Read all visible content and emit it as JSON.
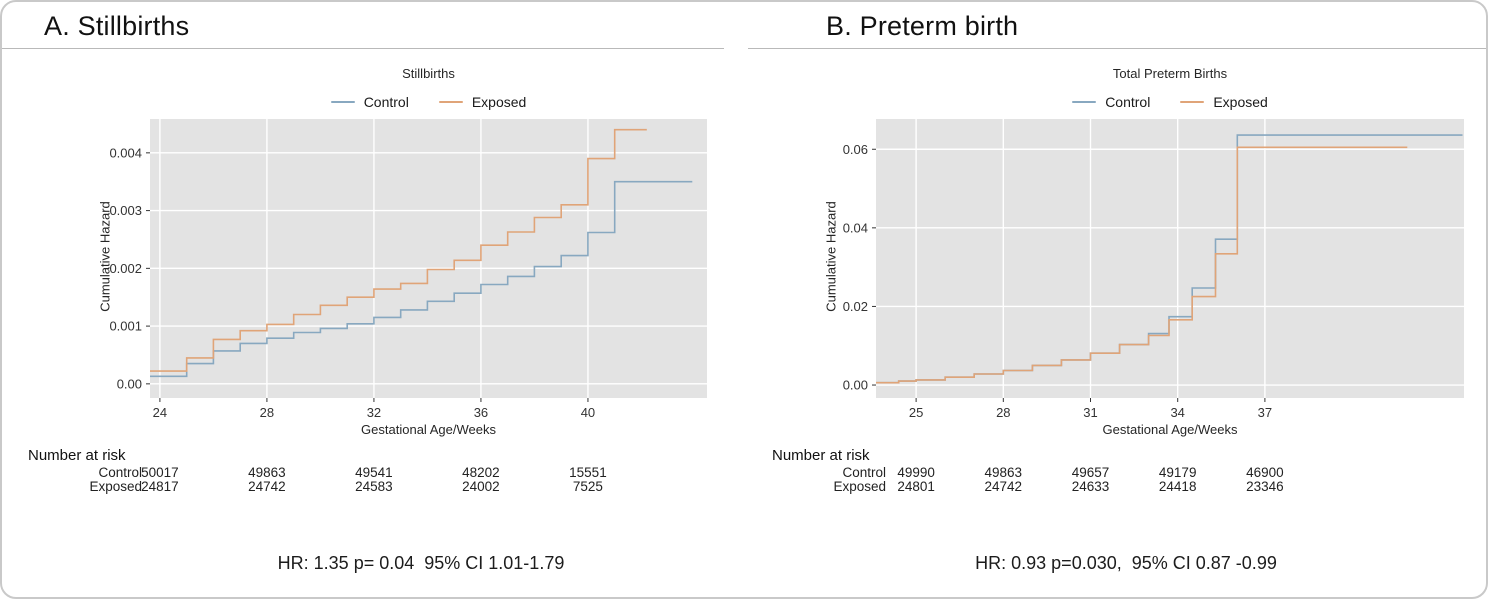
{
  "panels": [
    {
      "title": "A. Stillbirths",
      "risk": {
        "header": "Number at risk",
        "rows": [
          {
            "label": "Control",
            "values": [
              "50017",
              "49863",
              "49541",
              "48202",
              "15551"
            ]
          },
          {
            "label": "Exposed",
            "values": [
              "24817",
              "24742",
              "24583",
              "24002",
              "7525"
            ]
          }
        ]
      },
      "stats": "HR: 1.35 p= 0.04  95% CI 1.01-1.79"
    },
    {
      "title": "B. Preterm birth",
      "risk": {
        "header": "Number at risk",
        "rows": [
          {
            "label": "Control",
            "values": [
              "49990",
              "49863",
              "49657",
              "49179",
              "46900"
            ]
          },
          {
            "label": "Exposed",
            "values": [
              "24801",
              "24742",
              "24633",
              "24418",
              "23346"
            ]
          }
        ]
      },
      "stats": "HR: 0.93 p=0.030,  95% CI 0.87 -0.99"
    }
  ],
  "chart_data": [
    {
      "type": "line",
      "step": true,
      "title": "Stillbirths",
      "xlabel": "Gestational Age/Weeks",
      "ylabel": "Cumulative Hazard",
      "xlim": [
        23.63,
        44.45
      ],
      "ylim": [
        -0.000245,
        0.004586
      ],
      "x_ticks": [
        24,
        28,
        32,
        36,
        40
      ],
      "y_ticks": [
        {
          "v": 0,
          "label": "0.00"
        },
        {
          "v": 0.001,
          "label": "0.001"
        },
        {
          "v": 0.002,
          "label": "0.002"
        },
        {
          "v": 0.003,
          "label": "0.003"
        },
        {
          "v": 0.004,
          "label": "0.004"
        }
      ],
      "grid": true,
      "legend_position": "top",
      "panel_bg": "#e3e3e3",
      "series": [
        {
          "name": "Control",
          "color": "#88a8c0",
          "end_x": 43.9,
          "steps": [
            [
              23.63,
              0.00013
            ],
            [
              25,
              0.00035
            ],
            [
              26,
              0.00057
            ],
            [
              27,
              0.0007
            ],
            [
              28,
              0.00079
            ],
            [
              29,
              0.00089
            ],
            [
              30,
              0.00096
            ],
            [
              31,
              0.00104
            ],
            [
              32,
              0.00115
            ],
            [
              33,
              0.00128
            ],
            [
              34,
              0.00143
            ],
            [
              35,
              0.00157
            ],
            [
              36,
              0.00172
            ],
            [
              37,
              0.00186
            ],
            [
              38,
              0.00203
            ],
            [
              39,
              0.00222
            ],
            [
              40,
              0.00262
            ],
            [
              41,
              0.0035
            ]
          ]
        },
        {
          "name": "Exposed",
          "color": "#e0a478",
          "end_x": 42.2,
          "steps": [
            [
              23.63,
              0.00022
            ],
            [
              25,
              0.00045
            ],
            [
              26,
              0.00077
            ],
            [
              27,
              0.00092
            ],
            [
              28,
              0.00103
            ],
            [
              29,
              0.0012
            ],
            [
              30,
              0.00136
            ],
            [
              31,
              0.0015
            ],
            [
              32,
              0.00164
            ],
            [
              33,
              0.00174
            ],
            [
              34,
              0.00198
            ],
            [
              35,
              0.00214
            ],
            [
              36,
              0.0024
            ],
            [
              37,
              0.00263
            ],
            [
              38,
              0.00288
            ],
            [
              39,
              0.0031
            ],
            [
              40,
              0.0039
            ],
            [
              41,
              0.0044
            ]
          ]
        }
      ]
    },
    {
      "type": "line",
      "step": true,
      "title": "Total Preterm Births",
      "xlabel": "Gestational Age/Weeks",
      "ylabel": "Cumulative Hazard",
      "xlim": [
        23.62,
        43.85
      ],
      "ylim": [
        -0.0033,
        0.0677
      ],
      "x_ticks": [
        25,
        28,
        31,
        34,
        37
      ],
      "y_ticks": [
        {
          "v": 0,
          "label": "0.00"
        },
        {
          "v": 0.02,
          "label": "0.02"
        },
        {
          "v": 0.04,
          "label": "0.04"
        },
        {
          "v": 0.06,
          "label": "0.06"
        }
      ],
      "grid": true,
      "legend_position": "top",
      "panel_bg": "#e3e3e3",
      "series": [
        {
          "name": "Control",
          "color": "#88a8c0",
          "end_x": 43.8,
          "steps": [
            [
              23.62,
              0.0006
            ],
            [
              24.4,
              0.001
            ],
            [
              25,
              0.0013
            ],
            [
              26,
              0.002
            ],
            [
              27,
              0.0028
            ],
            [
              28,
              0.0037
            ],
            [
              29,
              0.005
            ],
            [
              30,
              0.0064
            ],
            [
              31,
              0.0081
            ],
            [
              32,
              0.0103
            ],
            [
              33,
              0.0131
            ],
            [
              33.7,
              0.0174
            ],
            [
              34.5,
              0.0247
            ],
            [
              35.3,
              0.0371
            ],
            [
              36.05,
              0.0636
            ]
          ]
        },
        {
          "name": "Exposed",
          "color": "#e0a478",
          "end_x": 41.9,
          "steps": [
            [
              23.62,
              0.0006
            ],
            [
              24.4,
              0.001
            ],
            [
              25,
              0.0013
            ],
            [
              26,
              0.002
            ],
            [
              27,
              0.0028
            ],
            [
              28,
              0.0037
            ],
            [
              29,
              0.005
            ],
            [
              30,
              0.0064
            ],
            [
              31,
              0.0081
            ],
            [
              32,
              0.0103
            ],
            [
              33,
              0.0126
            ],
            [
              33.7,
              0.0166
            ],
            [
              34.5,
              0.0225
            ],
            [
              35.3,
              0.0334
            ],
            [
              36.05,
              0.0605
            ]
          ]
        }
      ]
    }
  ]
}
